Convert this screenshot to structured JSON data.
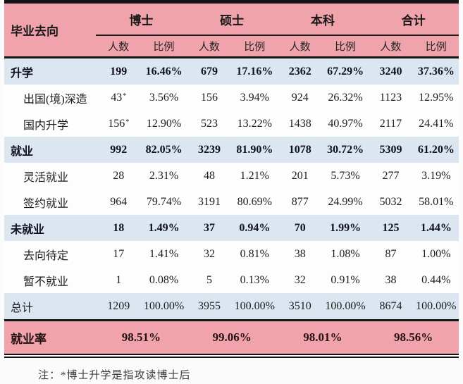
{
  "chart_data": {
    "type": "table",
    "corner_label": "毕业去向",
    "column_groups": [
      "博士",
      "硕士",
      "本科",
      "合计"
    ],
    "sub_columns": [
      "人数",
      "比例"
    ],
    "rows": [
      {
        "label": "升学",
        "style": "summary",
        "values": [
          "199",
          "16.46%",
          "679",
          "17.16%",
          "2362",
          "67.29%",
          "3240",
          "37.36%"
        ]
      },
      {
        "label": "出国(境)深造",
        "style": "detail",
        "values": [
          "43*",
          "3.56%",
          "156",
          "3.94%",
          "924",
          "26.32%",
          "1123",
          "12.95%"
        ]
      },
      {
        "label": "国内升学",
        "style": "detail",
        "values": [
          "156*",
          "12.90%",
          "523",
          "13.22%",
          "1438",
          "40.97%",
          "2117",
          "24.41%"
        ]
      },
      {
        "label": "就业",
        "style": "summary",
        "values": [
          "992",
          "82.05%",
          "3239",
          "81.90%",
          "1078",
          "30.72%",
          "5309",
          "61.20%"
        ]
      },
      {
        "label": "灵活就业",
        "style": "detail",
        "values": [
          "28",
          "2.31%",
          "48",
          "1.21%",
          "201",
          "5.73%",
          "277",
          "3.19%"
        ]
      },
      {
        "label": "签约就业",
        "style": "detail",
        "values": [
          "964",
          "79.74%",
          "3191",
          "80.69%",
          "877",
          "24.99%",
          "5032",
          "58.01%"
        ]
      },
      {
        "label": "未就业",
        "style": "summary",
        "values": [
          "18",
          "1.49%",
          "37",
          "0.94%",
          "70",
          "1.99%",
          "125",
          "1.44%"
        ]
      },
      {
        "label": "去向待定",
        "style": "detail",
        "values": [
          "17",
          "1.41%",
          "32",
          "0.81%",
          "38",
          "1.08%",
          "87",
          "1.00%"
        ]
      },
      {
        "label": "暂不就业",
        "style": "detail",
        "values": [
          "1",
          "0.08%",
          "5",
          "0.13%",
          "32",
          "0.91%",
          "38",
          "0.44%"
        ]
      },
      {
        "label": "总计",
        "style": "total",
        "values": [
          "1209",
          "100.00%",
          "3955",
          "100.00%",
          "3510",
          "100.00%",
          "8674",
          "100.00%"
        ]
      }
    ],
    "employment_rate": {
      "label": "就业率",
      "values": [
        "98.51%",
        "99.06%",
        "98.01%",
        "98.56%"
      ]
    },
    "footnote": "注：*博士升学是指攻读博士后"
  },
  "colors": {
    "header_pink": "#f1a3ab",
    "summary_blue": "#dce6f1",
    "detail_white": "#fdfdfd",
    "border_black": "#141414"
  }
}
